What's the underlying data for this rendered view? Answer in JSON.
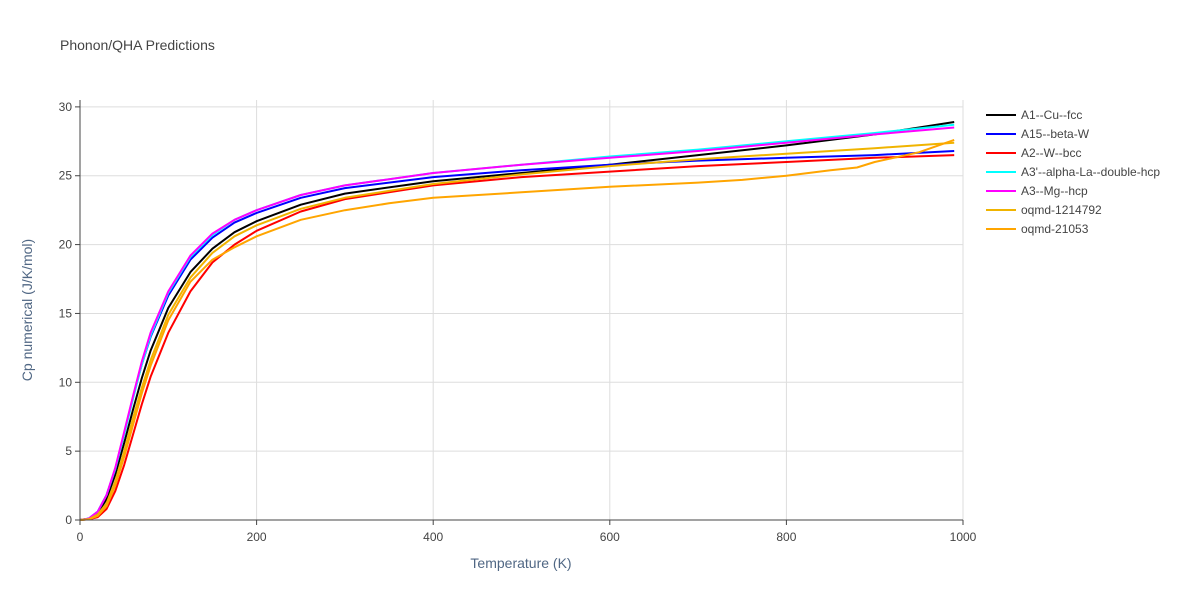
{
  "chart_data": {
    "type": "line",
    "title": "Phonon/QHA Predictions",
    "xlabel": "Temperature (K)",
    "ylabel": "Cp numerical (J/K/mol)",
    "xlim": [
      0,
      1000
    ],
    "ylim": [
      0,
      30.5
    ],
    "xticks": [
      0,
      200,
      400,
      600,
      800,
      1000
    ],
    "yticks": [
      0,
      5,
      10,
      15,
      20,
      25,
      30
    ],
    "grid": true,
    "legend_position": "right",
    "series": [
      {
        "name": "A1--Cu--fcc",
        "color": "#000000",
        "x": [
          0,
          10,
          20,
          30,
          40,
          50,
          60,
          70,
          80,
          100,
          125,
          150,
          175,
          200,
          250,
          300,
          400,
          500,
          600,
          700,
          800,
          900,
          990
        ],
        "y": [
          0,
          0.1,
          0.5,
          1.5,
          3.3,
          5.6,
          8.0,
          10.3,
          12.3,
          15.4,
          18.0,
          19.7,
          20.9,
          21.7,
          22.9,
          23.7,
          24.6,
          25.2,
          25.8,
          26.5,
          27.2,
          28.0,
          28.9
        ]
      },
      {
        "name": "A15--beta-W",
        "color": "#0000ff",
        "x": [
          0,
          10,
          20,
          30,
          40,
          50,
          60,
          70,
          80,
          100,
          125,
          150,
          175,
          200,
          250,
          300,
          400,
          500,
          600,
          700,
          800,
          900,
          990
        ],
        "y": [
          0,
          0.1,
          0.6,
          1.8,
          3.7,
          6.3,
          8.9,
          11.3,
          13.3,
          16.3,
          18.9,
          20.5,
          21.6,
          22.3,
          23.4,
          24.1,
          24.9,
          25.4,
          25.8,
          26.1,
          26.3,
          26.5,
          26.8
        ]
      },
      {
        "name": "A2--W--bcc",
        "color": "#ff0000",
        "x": [
          0,
          10,
          20,
          30,
          40,
          50,
          60,
          70,
          80,
          100,
          125,
          150,
          175,
          200,
          250,
          300,
          400,
          500,
          600,
          700,
          800,
          900,
          990
        ],
        "y": [
          0,
          0.05,
          0.2,
          0.8,
          2.1,
          4.0,
          6.2,
          8.4,
          10.4,
          13.6,
          16.6,
          18.7,
          20.0,
          21.0,
          22.4,
          23.3,
          24.3,
          24.9,
          25.3,
          25.7,
          26.0,
          26.3,
          26.5
        ]
      },
      {
        "name": "A3'--alpha-La--double-hcp",
        "color": "#00ffff",
        "x": [
          0,
          10,
          20,
          30,
          40,
          50,
          60,
          70,
          80,
          100,
          125,
          150,
          175,
          200,
          250,
          300,
          400,
          500,
          600,
          700,
          800,
          900,
          990
        ],
        "y": [
          0,
          0.1,
          0.6,
          1.8,
          3.7,
          6.2,
          8.8,
          11.3,
          13.4,
          16.5,
          19.1,
          20.7,
          21.8,
          22.5,
          23.6,
          24.3,
          25.2,
          25.8,
          26.4,
          26.9,
          27.5,
          28.1,
          28.7
        ]
      },
      {
        "name": "A3--Mg--hcp",
        "color": "#ff00ff",
        "x": [
          0,
          10,
          20,
          30,
          40,
          50,
          60,
          70,
          80,
          100,
          125,
          150,
          175,
          200,
          250,
          300,
          400,
          500,
          600,
          700,
          800,
          900,
          990
        ],
        "y": [
          0,
          0.1,
          0.6,
          1.8,
          3.8,
          6.4,
          9.0,
          11.5,
          13.6,
          16.6,
          19.2,
          20.8,
          21.8,
          22.5,
          23.6,
          24.3,
          25.2,
          25.8,
          26.3,
          26.8,
          27.4,
          28.0,
          28.5
        ]
      },
      {
        "name": "oqmd-1214792",
        "color": "#f0b400",
        "x": [
          0,
          10,
          20,
          30,
          40,
          50,
          60,
          70,
          80,
          100,
          125,
          150,
          175,
          200,
          250,
          300,
          400,
          500,
          600,
          700,
          800,
          900,
          990
        ],
        "y": [
          0,
          0.05,
          0.4,
          1.2,
          2.8,
          5.0,
          7.4,
          9.6,
          11.6,
          14.9,
          17.6,
          19.4,
          20.6,
          21.4,
          22.6,
          23.4,
          24.4,
          25.1,
          25.7,
          26.2,
          26.6,
          27.0,
          27.4
        ]
      },
      {
        "name": "oqmd-21053",
        "color": "#ffa500",
        "x": [
          0,
          10,
          20,
          30,
          40,
          50,
          60,
          70,
          80,
          100,
          125,
          150,
          175,
          200,
          250,
          300,
          350,
          400,
          500,
          600,
          700,
          750,
          800,
          850,
          880,
          900,
          950,
          990
        ],
        "y": [
          0,
          0.05,
          0.3,
          1.0,
          2.5,
          4.6,
          6.9,
          9.2,
          11.2,
          14.5,
          17.3,
          18.9,
          19.8,
          20.6,
          21.8,
          22.5,
          23.0,
          23.4,
          23.8,
          24.2,
          24.5,
          24.7,
          25.0,
          25.4,
          25.6,
          26.0,
          26.7,
          27.6
        ]
      }
    ]
  }
}
